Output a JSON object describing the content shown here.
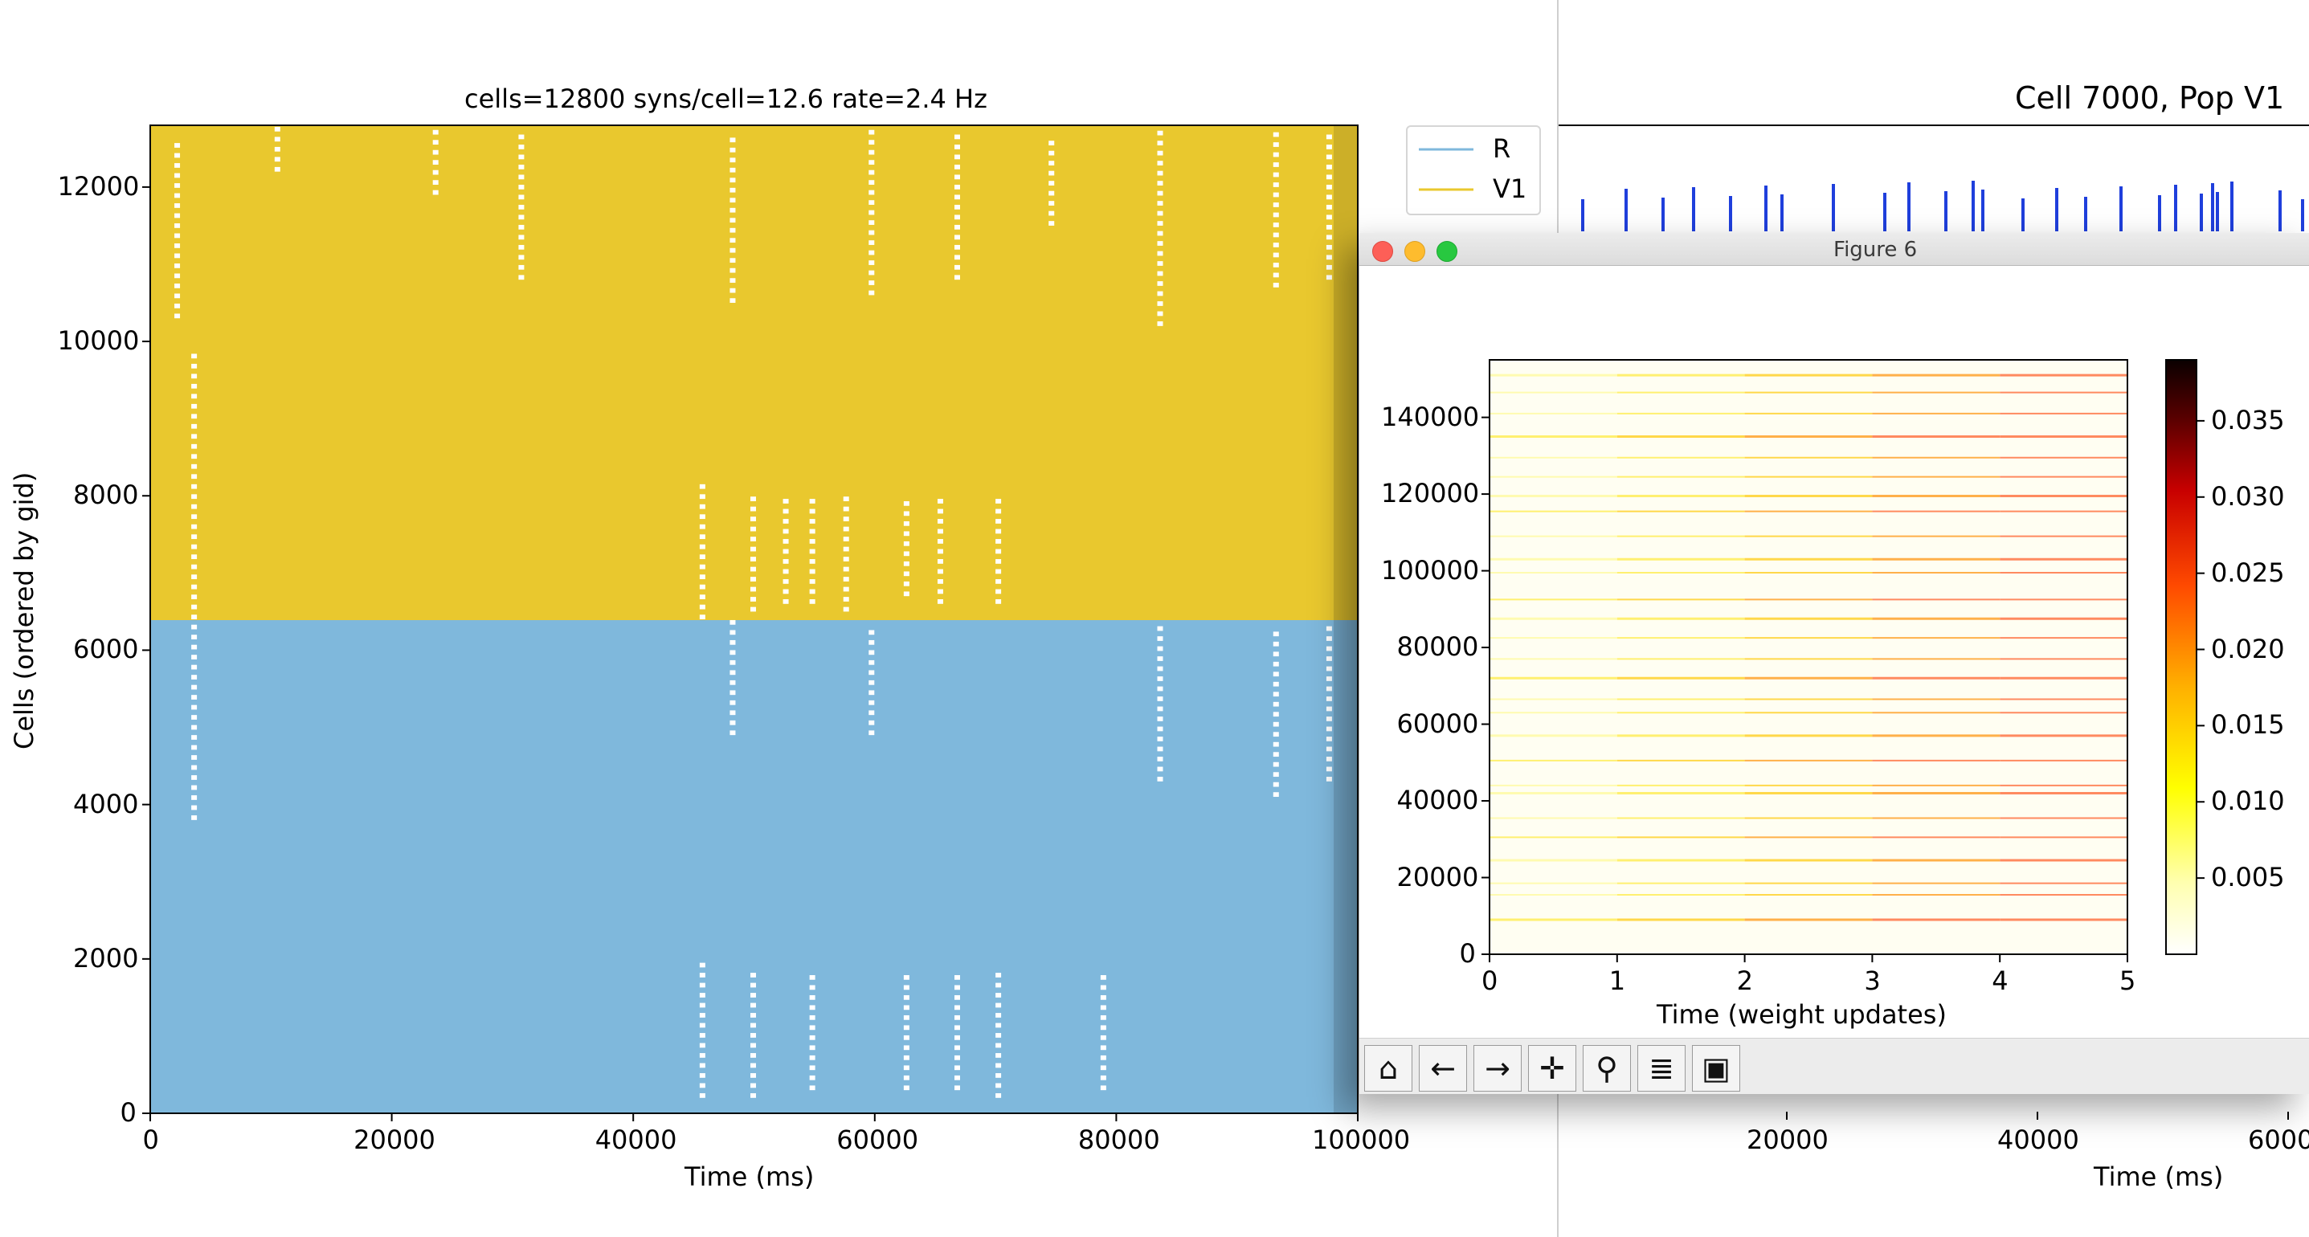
{
  "raster": {
    "title": "cells=12800   syns/cell=12.6   rate=2.4 Hz",
    "xlabel": "Time (ms)",
    "ylabel": "Cells (ordered by gid)",
    "xticks": [
      "0",
      "20000",
      "40000",
      "60000",
      "80000",
      "100000"
    ],
    "yticks": [
      "0",
      "2000",
      "4000",
      "6000",
      "8000",
      "10000",
      "12000"
    ],
    "legend": [
      {
        "label": "R",
        "color": "#7fb8dc"
      },
      {
        "label": "V1",
        "color": "#e9c82e"
      }
    ]
  },
  "chart_data": [
    {
      "type": "scatter",
      "title": "cells=12800   syns/cell=12.6   rate=2.4 Hz",
      "xlabel": "Time (ms)",
      "ylabel": "Cells (ordered by gid)",
      "xlim": [
        0,
        100000
      ],
      "ylim": [
        0,
        12800
      ],
      "series": [
        {
          "name": "R",
          "color": "#7fb8dc",
          "gid_range": [
            0,
            6400
          ]
        },
        {
          "name": "V1",
          "color": "#e9c82e",
          "gid_range": [
            6400,
            12800
          ]
        }
      ],
      "legend_position": "upper-right-outside"
    },
    {
      "type": "heatmap",
      "xlabel": "Time (weight updates)",
      "xlim": [
        0,
        5
      ],
      "ylim": [
        0,
        155000
      ],
      "colorbar_range": [
        0,
        0.039
      ],
      "colormap": "hot_r"
    }
  ],
  "right_plot": {
    "title": "Cell 7000, Pop V1",
    "xlabel": "Time (ms)",
    "xticks": [
      "20000",
      "40000",
      "6000"
    ],
    "spike_color": "#1f3fdc"
  },
  "figure6": {
    "window_title": "Figure 6",
    "xlabel": "Time (weight updates)",
    "xticks": [
      "0",
      "1",
      "2",
      "3",
      "4",
      "5"
    ],
    "yticks": [
      "0",
      "20000",
      "40000",
      "60000",
      "80000",
      "100000",
      "120000",
      "140000"
    ],
    "colorbar_ticks": [
      "0.005",
      "0.010",
      "0.015",
      "0.020",
      "0.025",
      "0.030",
      "0.035"
    ],
    "toolbar": [
      {
        "name": "home-icon",
        "glyph": "⌂"
      },
      {
        "name": "back-arrow-icon",
        "glyph": "←"
      },
      {
        "name": "forward-arrow-icon",
        "glyph": "→"
      },
      {
        "name": "pan-icon",
        "glyph": "✛"
      },
      {
        "name": "zoom-icon",
        "glyph": "⚲"
      },
      {
        "name": "configure-subplots-icon",
        "glyph": "≣"
      },
      {
        "name": "save-icon",
        "glyph": "▣"
      }
    ]
  }
}
